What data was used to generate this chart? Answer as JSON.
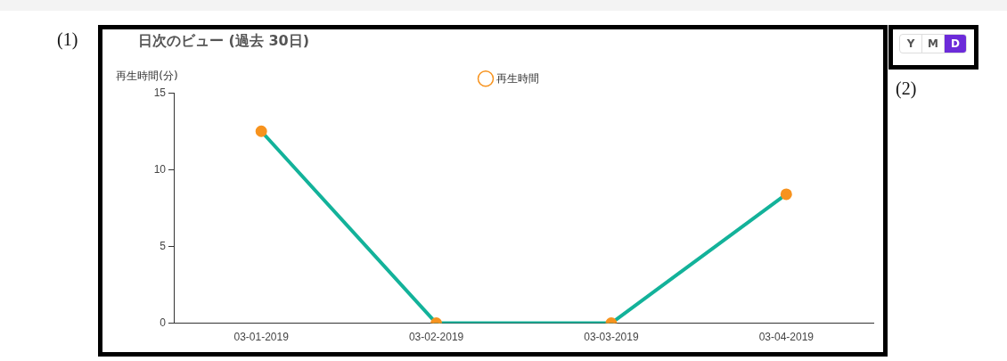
{
  "chart_data": {
    "type": "line",
    "title": "日次のビュー (過去 30日)",
    "ylabel": "再生時間(分)",
    "categories": [
      "03-01-2019",
      "03-02-2019",
      "03-03-2019",
      "03-04-2019"
    ],
    "series": [
      {
        "name": "再生時間",
        "color": "#f7931e",
        "values": [
          12.5,
          0,
          0,
          8.4
        ]
      }
    ],
    "ylim": [
      0,
      15
    ],
    "yticks": [
      0,
      5,
      10,
      15
    ],
    "grid": false,
    "legend": "top",
    "marker": "circle",
    "line_style": "solid",
    "annotations": [
      "(1)",
      "(2)",
      "Y",
      "M",
      "D"
    ]
  }
}
